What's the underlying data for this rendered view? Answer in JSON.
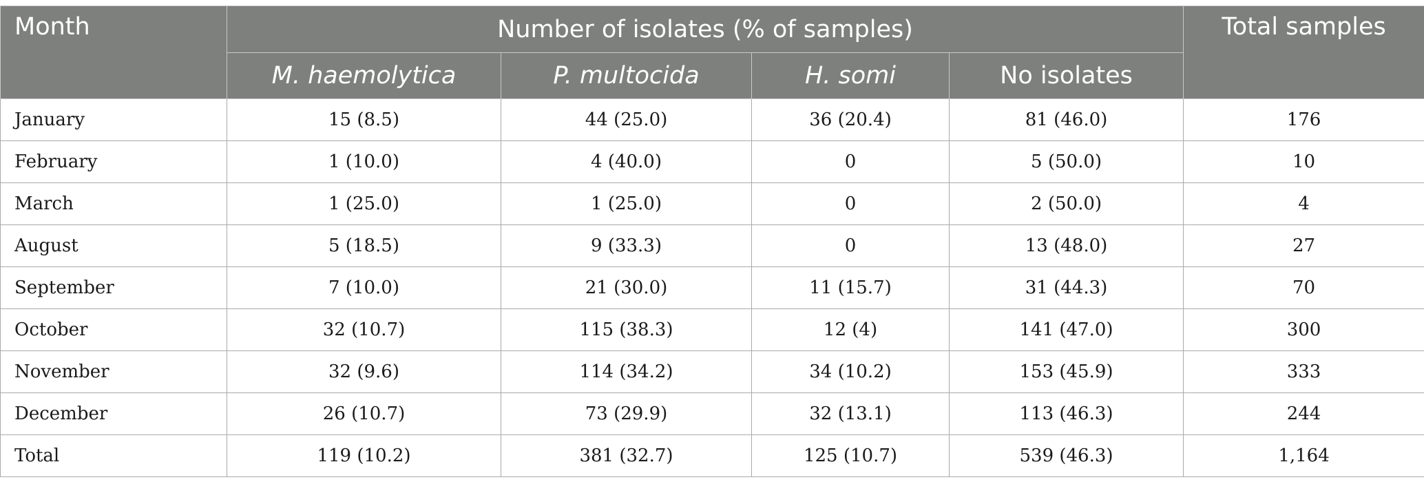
{
  "table": {
    "headers": {
      "month": "Month",
      "group": "Number of isolates (% of samples)",
      "total_samples": "Total samples",
      "sub": [
        "M. haemolytica",
        "P. multocida",
        "H. somi",
        "No isolates"
      ]
    },
    "rows": [
      {
        "month": "January",
        "mh": "15 (8.5)",
        "pm": "44 (25.0)",
        "hs": "36 (20.4)",
        "ni": "81 (46.0)",
        "total": "176"
      },
      {
        "month": "February",
        "mh": "1 (10.0)",
        "pm": "4 (40.0)",
        "hs": "0",
        "ni": "5 (50.0)",
        "total": "10"
      },
      {
        "month": "March",
        "mh": "1 (25.0)",
        "pm": "1 (25.0)",
        "hs": "0",
        "ni": "2 (50.0)",
        "total": "4"
      },
      {
        "month": "August",
        "mh": "5 (18.5)",
        "pm": "9 (33.3)",
        "hs": "0",
        "ni": "13 (48.0)",
        "total": "27"
      },
      {
        "month": "September",
        "mh": "7 (10.0)",
        "pm": "21 (30.0)",
        "hs": "11 (15.7)",
        "ni": "31 (44.3)",
        "total": "70"
      },
      {
        "month": "October",
        "mh": "32 (10.7)",
        "pm": "115 (38.3)",
        "hs": "12 (4)",
        "ni": "141 (47.0)",
        "total": "300"
      },
      {
        "month": "November",
        "mh": "32 (9.6)",
        "pm": "114 (34.2)",
        "hs": "34 (10.2)",
        "ni": "153 (45.9)",
        "total": "333"
      },
      {
        "month": "December",
        "mh": "26 (10.7)",
        "pm": "73 (29.9)",
        "hs": "32 (13.1)",
        "ni": "113 (46.3)",
        "total": "244"
      },
      {
        "month": "Total",
        "mh": "119 (10.2)",
        "pm": "381 (32.7)",
        "hs": "125 (10.7)",
        "ni": "539 (46.3)",
        "total": "1,164"
      }
    ]
  }
}
